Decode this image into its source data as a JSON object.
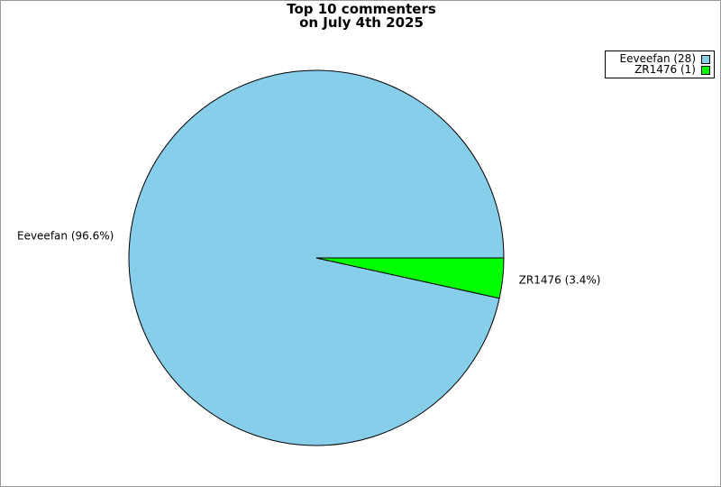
{
  "chart_data": {
    "type": "pie",
    "title": "Top 10 commenters\non July 4th 2025",
    "title_lines": [
      "Top 10 commenters",
      "on July 4th 2025"
    ],
    "categories": [
      "Eeveefan",
      "ZR1476"
    ],
    "values": [
      28,
      1
    ],
    "slice_labels": [
      "Eeveefan (96.6%)",
      "ZR1476 (3.4%)"
    ],
    "legend_entries": [
      "Eeveefan (28)",
      "ZR1476 (1)"
    ],
    "colors": [
      "#87ceeb",
      "#00ff00"
    ],
    "legend_position": "top-right"
  }
}
